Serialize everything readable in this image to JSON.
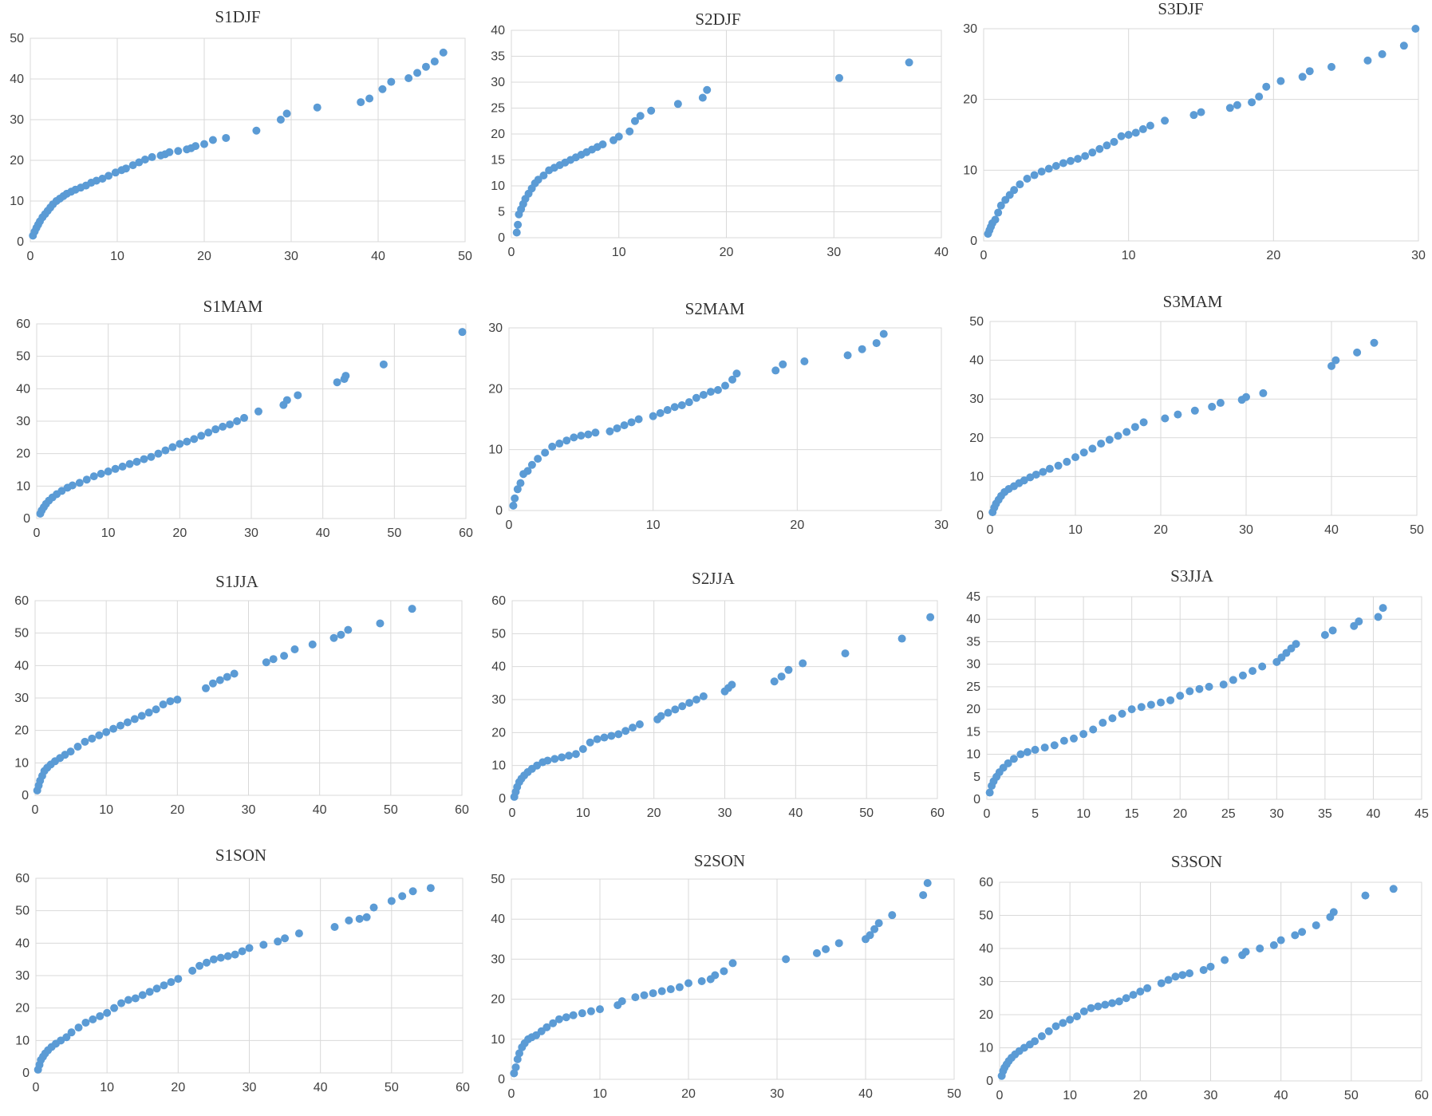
{
  "chart_data": [
    {
      "type": "scatter",
      "title": "S1DJF",
      "xlim": [
        0,
        50
      ],
      "ylim": [
        0,
        50
      ],
      "xticks": [
        0,
        10,
        20,
        30,
        40,
        50
      ],
      "yticks": [
        0,
        10,
        20,
        30,
        40,
        50
      ],
      "x": [
        0.3,
        0.5,
        0.7,
        0.9,
        1.1,
        1.4,
        1.7,
        2,
        2.3,
        2.6,
        3,
        3.4,
        3.8,
        4.2,
        4.7,
        5.2,
        5.8,
        6.4,
        7,
        7.6,
        8.3,
        9,
        9.8,
        10.5,
        11,
        11.8,
        12.5,
        13.2,
        14,
        15,
        15.5,
        16,
        17,
        18,
        18.5,
        19,
        20,
        21,
        22.5,
        26,
        28.8,
        29.5,
        33,
        38,
        39,
        40.5,
        41.5,
        43.5,
        44.5,
        45.5,
        46.5,
        47.5
      ],
      "y": [
        1.5,
        2.5,
        3.4,
        4.2,
        5,
        6,
        6.8,
        7.6,
        8.4,
        9.2,
        10,
        10.6,
        11.2,
        11.8,
        12.3,
        12.8,
        13.3,
        13.8,
        14.5,
        15,
        15.5,
        16.2,
        17,
        17.6,
        18,
        18.8,
        19.5,
        20.2,
        20.8,
        21.2,
        21.5,
        22,
        22.3,
        22.7,
        23,
        23.5,
        24,
        25,
        25.5,
        27.3,
        30,
        31.5,
        33,
        34.3,
        35.2,
        37.5,
        39.3,
        40.2,
        41.5,
        43,
        44.3,
        46.5
      ]
    },
    {
      "type": "scatter",
      "title": "S2DJF",
      "xlim": [
        0,
        40
      ],
      "ylim": [
        0,
        40
      ],
      "xticks": [
        0,
        10,
        20,
        30,
        40
      ],
      "yticks": [
        0,
        5,
        10,
        15,
        20,
        25,
        30,
        35,
        40
      ],
      "x": [
        0.5,
        0.6,
        0.7,
        0.9,
        1.1,
        1.3,
        1.6,
        1.9,
        2.2,
        2.5,
        3,
        3.5,
        4,
        4.5,
        5,
        5.5,
        6,
        6.5,
        7,
        7.5,
        8,
        8.5,
        9.5,
        10,
        11,
        11.5,
        12,
        13,
        15.5,
        17.8,
        18.2,
        30.5,
        37
      ],
      "y": [
        1,
        2.5,
        4.5,
        5.5,
        6.5,
        7.5,
        8.5,
        9.5,
        10.5,
        11.2,
        12,
        13,
        13.5,
        14,
        14.5,
        15,
        15.5,
        16,
        16.5,
        17,
        17.5,
        18,
        18.8,
        19.5,
        20.5,
        22.5,
        23.5,
        24.5,
        25.8,
        27,
        28.5,
        30.8,
        33.8
      ]
    },
    {
      "type": "scatter",
      "title": "S3DJF",
      "xlim": [
        0,
        30
      ],
      "ylim": [
        0,
        30
      ],
      "xticks": [
        0,
        10,
        20,
        30
      ],
      "yticks": [
        0,
        10,
        20,
        30
      ],
      "x": [
        0.3,
        0.4,
        0.5,
        0.6,
        0.8,
        1,
        1.2,
        1.5,
        1.8,
        2.1,
        2.5,
        3,
        3.5,
        4,
        4.5,
        5,
        5.5,
        6,
        6.5,
        7,
        7.5,
        8,
        8.5,
        9,
        9.5,
        10,
        10.5,
        11,
        11.5,
        12.5,
        14.5,
        15,
        17,
        17.5,
        18.5,
        19,
        19.5,
        20.5,
        22,
        22.5,
        24,
        26.5,
        27.5,
        29,
        29.8
      ],
      "y": [
        1,
        1.5,
        2,
        2.5,
        3,
        4,
        5,
        5.8,
        6.5,
        7.2,
        8,
        8.8,
        9.3,
        9.8,
        10.2,
        10.6,
        11,
        11.3,
        11.6,
        12,
        12.5,
        13,
        13.5,
        14,
        14.8,
        15,
        15.3,
        15.8,
        16.3,
        17,
        17.8,
        18.2,
        18.8,
        19.2,
        19.6,
        20.4,
        21.8,
        22.6,
        23.2,
        24,
        24.6,
        25.5,
        26.4,
        27.6,
        30
      ]
    },
    {
      "type": "scatter",
      "title": "S1MAM",
      "xlim": [
        0,
        60
      ],
      "ylim": [
        0,
        60
      ],
      "xticks": [
        0,
        10,
        20,
        30,
        40,
        50,
        60
      ],
      "yticks": [
        0,
        10,
        20,
        30,
        40,
        50,
        60
      ],
      "x": [
        0.5,
        0.7,
        1,
        1.3,
        1.7,
        2.2,
        2.8,
        3.5,
        4.3,
        5,
        6,
        7,
        8,
        9,
        10,
        11,
        12,
        13,
        14,
        15,
        16,
        17,
        18,
        19,
        20,
        21,
        22,
        23,
        24,
        25,
        26,
        27,
        28,
        29,
        31,
        34.5,
        35,
        36.5,
        42,
        43,
        43.2,
        48.5,
        59.5
      ],
      "y": [
        1.5,
        2.5,
        3.5,
        4.5,
        5.5,
        6.5,
        7.5,
        8.5,
        9.5,
        10.2,
        11,
        12,
        13,
        13.8,
        14.5,
        15.3,
        16,
        16.8,
        17.5,
        18.3,
        19,
        20,
        21,
        22,
        23,
        23.7,
        24.5,
        25.5,
        26.5,
        27.5,
        28.3,
        29,
        30,
        31,
        33,
        35,
        36.5,
        38,
        42,
        43,
        44,
        47.5,
        57.5
      ]
    },
    {
      "type": "scatter",
      "title": "S2MAM",
      "xlim": [
        0,
        30
      ],
      "ylim": [
        0,
        30
      ],
      "xticks": [
        0,
        10,
        20,
        30
      ],
      "yticks": [
        0,
        10,
        20,
        30
      ],
      "x": [
        0.3,
        0.4,
        0.6,
        0.8,
        1,
        1.3,
        1.6,
        2,
        2.5,
        3,
        3.5,
        4,
        4.5,
        5,
        5.5,
        6,
        7,
        7.5,
        8,
        8.5,
        9,
        10,
        10.5,
        11,
        11.5,
        12,
        12.5,
        13,
        13.5,
        14,
        14.5,
        15,
        15.5,
        15.8,
        18.5,
        19,
        20.5,
        23.5,
        24.5,
        25.5,
        26
      ],
      "y": [
        0.8,
        2,
        3.5,
        4.5,
        6,
        6.5,
        7.5,
        8.5,
        9.5,
        10.5,
        11,
        11.5,
        12,
        12.3,
        12.5,
        12.8,
        13,
        13.5,
        14,
        14.5,
        15,
        15.5,
        16,
        16.5,
        17,
        17.3,
        17.8,
        18.5,
        19,
        19.5,
        19.8,
        20.5,
        21.5,
        22.5,
        23,
        24,
        24.5,
        25.5,
        26.5,
        27.5,
        29
      ]
    },
    {
      "type": "scatter",
      "title": "S3MAM",
      "xlim": [
        0,
        50
      ],
      "ylim": [
        0,
        50
      ],
      "xticks": [
        0,
        10,
        20,
        30,
        40,
        50
      ],
      "yticks": [
        0,
        10,
        20,
        30,
        40,
        50
      ],
      "x": [
        0.3,
        0.5,
        0.7,
        1,
        1.3,
        1.7,
        2.2,
        2.8,
        3.4,
        4,
        4.7,
        5.4,
        6.2,
        7,
        8,
        9,
        10,
        11,
        12,
        13,
        14,
        15,
        16,
        17,
        18,
        20.5,
        22,
        24,
        26,
        27,
        29.5,
        30,
        32,
        40,
        40.5,
        43,
        45
      ],
      "y": [
        0.8,
        2,
        3,
        4,
        5,
        6,
        6.8,
        7.5,
        8.3,
        9,
        9.8,
        10.5,
        11.2,
        12,
        12.8,
        13.8,
        15,
        16.2,
        17.2,
        18.5,
        19.5,
        20.5,
        21.5,
        22.8,
        24,
        25,
        26,
        27,
        28,
        29,
        29.8,
        30.5,
        31.5,
        38.5,
        40,
        42,
        44.5
      ]
    },
    {
      "type": "scatter",
      "title": "S1JJA",
      "xlim": [
        0,
        60
      ],
      "ylim": [
        0,
        60
      ],
      "xticks": [
        0,
        10,
        20,
        30,
        40,
        50,
        60
      ],
      "yticks": [
        0,
        10,
        20,
        30,
        40,
        50,
        60
      ],
      "x": [
        0.3,
        0.5,
        0.7,
        1,
        1.3,
        1.7,
        2.2,
        2.8,
        3.5,
        4.2,
        5,
        6,
        7,
        8,
        9,
        10,
        11,
        12,
        13,
        14,
        15,
        16,
        17,
        18,
        19,
        20,
        24,
        25,
        26,
        27,
        28,
        32.5,
        33.5,
        35,
        36.5,
        39,
        42,
        43,
        44,
        48.5,
        53
      ],
      "y": [
        1.5,
        3,
        4.5,
        6,
        7.5,
        8.5,
        9.5,
        10.5,
        11.5,
        12.5,
        13.5,
        15,
        16.5,
        17.5,
        18.5,
        19.5,
        20.5,
        21.5,
        22.5,
        23.5,
        24.5,
        25.5,
        26.5,
        28,
        29,
        29.5,
        33,
        34.5,
        35.5,
        36.5,
        37.5,
        41,
        42,
        43,
        45,
        46.5,
        48.5,
        49.5,
        51,
        53,
        57.5
      ]
    },
    {
      "type": "scatter",
      "title": "S2JJA",
      "xlim": [
        0,
        60
      ],
      "ylim": [
        0,
        60
      ],
      "xticks": [
        0,
        10,
        20,
        30,
        40,
        50,
        60
      ],
      "yticks": [
        0,
        10,
        20,
        30,
        40,
        50,
        60
      ],
      "x": [
        0.3,
        0.5,
        0.7,
        1,
        1.3,
        1.7,
        2.2,
        2.8,
        3.5,
        4.3,
        5,
        6,
        7,
        8,
        9,
        10,
        11,
        12,
        13,
        14,
        15,
        16,
        17,
        18,
        20.5,
        21,
        22,
        23,
        24,
        25,
        26,
        27,
        30,
        30.5,
        31,
        37,
        38,
        39,
        41,
        47,
        55,
        59
      ],
      "y": [
        0.5,
        2,
        3.5,
        5,
        6,
        7,
        8,
        9,
        10,
        11,
        11.5,
        12,
        12.5,
        13,
        13.5,
        15,
        17,
        18,
        18.5,
        19,
        19.5,
        20.5,
        21.5,
        22.5,
        24,
        25,
        26,
        27,
        28,
        29,
        30,
        31,
        32.5,
        33.5,
        34.5,
        35.5,
        37,
        39,
        41,
        44,
        48.5,
        55
      ]
    },
    {
      "type": "scatter",
      "title": "S3JJA",
      "xlim": [
        0,
        45
      ],
      "ylim": [
        0,
        45
      ],
      "xticks": [
        0,
        5,
        10,
        15,
        20,
        25,
        30,
        35,
        40,
        45
      ],
      "yticks": [
        0,
        5,
        10,
        15,
        20,
        25,
        30,
        35,
        40,
        45
      ],
      "x": [
        0.3,
        0.5,
        0.7,
        1,
        1.3,
        1.7,
        2.2,
        2.8,
        3.5,
        4.2,
        5,
        6,
        7,
        8,
        9,
        10,
        11,
        12,
        13,
        14,
        15,
        16,
        17,
        18,
        19,
        20,
        21,
        22,
        23,
        24.5,
        25.5,
        26.5,
        27.5,
        28.5,
        30,
        30.5,
        31,
        31.5,
        32,
        35,
        35.8,
        38,
        38.5,
        40.5,
        41
      ],
      "y": [
        1.5,
        3,
        4,
        5,
        6,
        7,
        8,
        9,
        10,
        10.5,
        11,
        11.5,
        12,
        13,
        13.5,
        14.5,
        15.5,
        17,
        18,
        19,
        20,
        20.5,
        21,
        21.5,
        22,
        23,
        24,
        24.5,
        25,
        25.5,
        26.5,
        27.5,
        28.5,
        29.5,
        30.5,
        31.5,
        32.5,
        33.5,
        34.5,
        36.5,
        37.5,
        38.5,
        39.5,
        40.5,
        42.5
      ]
    },
    {
      "type": "scatter",
      "title": "S1SON",
      "xlim": [
        0,
        60
      ],
      "ylim": [
        0,
        60
      ],
      "xticks": [
        0,
        10,
        20,
        30,
        40,
        50,
        60
      ],
      "yticks": [
        0,
        10,
        20,
        30,
        40,
        50,
        60
      ],
      "x": [
        0.3,
        0.5,
        0.7,
        1,
        1.3,
        1.7,
        2.2,
        2.8,
        3.5,
        4.3,
        5,
        6,
        7,
        8,
        9,
        10,
        11,
        12,
        13,
        14,
        15,
        16,
        17,
        18,
        19,
        20,
        22,
        23,
        24,
        25,
        26,
        27,
        28,
        29,
        30,
        32,
        34,
        35,
        37,
        42,
        44,
        45.5,
        46.5,
        47.5,
        50,
        51.5,
        53,
        55.5
      ],
      "y": [
        1,
        2.5,
        4,
        5,
        6,
        7,
        8,
        9,
        10,
        11,
        12.5,
        14,
        15.5,
        16.5,
        17.5,
        18.5,
        20,
        21.5,
        22.5,
        23,
        24,
        25,
        26,
        27,
        28,
        29,
        31.5,
        33,
        34,
        35,
        35.5,
        36,
        36.5,
        37.5,
        38.5,
        39.5,
        40.5,
        41.5,
        43,
        45,
        47,
        47.5,
        48,
        51,
        53,
        54.5,
        56,
        57
      ]
    },
    {
      "type": "scatter",
      "title": "S2SON",
      "xlim": [
        0,
        50
      ],
      "ylim": [
        0,
        50
      ],
      "xticks": [
        0,
        10,
        20,
        30,
        40,
        50
      ],
      "yticks": [
        0,
        10,
        20,
        30,
        40,
        50
      ],
      "x": [
        0.3,
        0.5,
        0.7,
        0.9,
        1.2,
        1.5,
        1.9,
        2.3,
        2.8,
        3.4,
        4,
        4.7,
        5.4,
        6.2,
        7,
        8,
        9,
        10,
        12,
        12.5,
        14,
        15,
        16,
        17,
        18,
        19,
        20,
        21.5,
        22.5,
        23,
        24,
        25,
        31,
        34.5,
        35.5,
        37,
        40,
        40.5,
        41,
        41.5,
        43,
        46.5,
        47
      ],
      "y": [
        1.5,
        3,
        5,
        6.5,
        8,
        9,
        10,
        10.5,
        11,
        12,
        13,
        14,
        15,
        15.5,
        16,
        16.5,
        17,
        17.5,
        18.5,
        19.5,
        20.5,
        21,
        21.5,
        22,
        22.5,
        23,
        24,
        24.5,
        25,
        26,
        27,
        29,
        30,
        31.5,
        32.5,
        34,
        35,
        36,
        37.5,
        39,
        41,
        46,
        49
      ]
    },
    {
      "type": "scatter",
      "title": "S3SON",
      "xlim": [
        0,
        60
      ],
      "ylim": [
        0,
        60
      ],
      "xticks": [
        0,
        10,
        20,
        30,
        40,
        50,
        60
      ],
      "yticks": [
        0,
        10,
        20,
        30,
        40,
        50,
        60
      ],
      "x": [
        0.3,
        0.5,
        0.7,
        1,
        1.3,
        1.7,
        2.2,
        2.8,
        3.5,
        4.3,
        5,
        6,
        7,
        8,
        9,
        10,
        11,
        12,
        13,
        14,
        15,
        16,
        17,
        18,
        19,
        20,
        21,
        23,
        24,
        25,
        26,
        27,
        29,
        30,
        32,
        34.5,
        35,
        37,
        39,
        40,
        42,
        43,
        45,
        47,
        47.5,
        52,
        56
      ],
      "y": [
        1.5,
        3,
        4,
        5,
        6,
        7,
        8,
        9,
        10,
        11,
        12,
        13.5,
        15,
        16.5,
        17.5,
        18.5,
        19.5,
        21,
        22,
        22.5,
        23,
        23.5,
        24,
        25,
        26,
        27,
        28,
        29.5,
        30.5,
        31.5,
        32,
        32.5,
        33.5,
        34.5,
        36.5,
        38,
        39,
        40,
        41,
        42.5,
        44,
        45,
        47,
        49.5,
        51,
        56,
        58
      ]
    }
  ]
}
